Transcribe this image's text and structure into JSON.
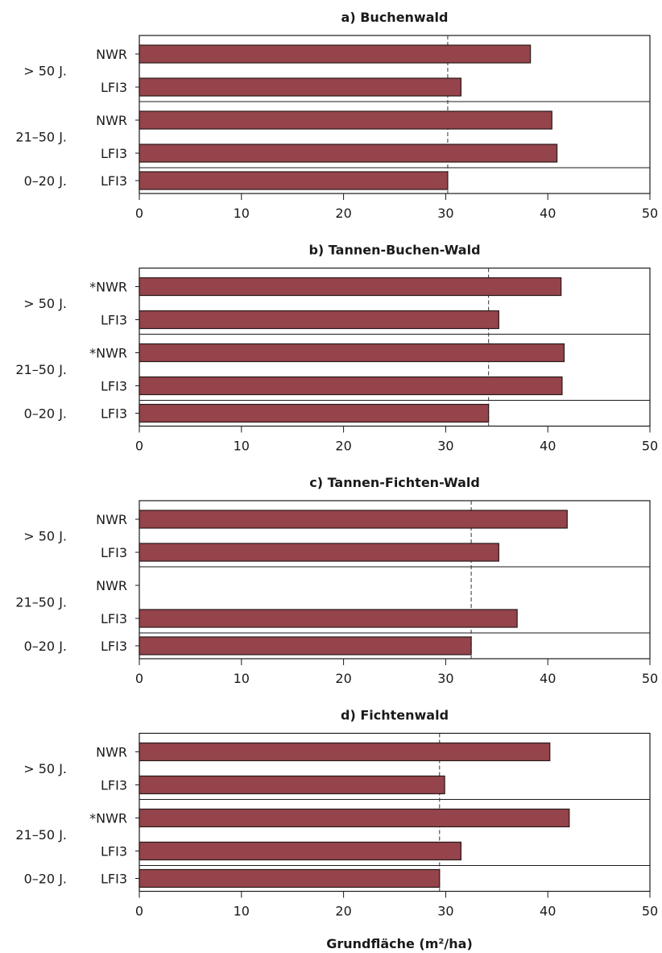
{
  "figure": {
    "xlabel": "Grundfläche (m²/ha)",
    "bar_color": "#94444a",
    "bar_edge_color": "#2a1a1a"
  },
  "chart_data": [
    {
      "type": "bar",
      "orientation": "horizontal",
      "title": "a) Buchenwald",
      "xlim": [
        0,
        50
      ],
      "xticks": [
        "0",
        "10",
        "20",
        "30",
        "40",
        "50"
      ],
      "reference_line": 30.2,
      "groups": [
        {
          "label": "> 50 J.",
          "rows": [
            {
              "label": "NWR",
              "value": 38.3
            },
            {
              "label": "LFI3",
              "value": 31.5
            }
          ]
        },
        {
          "label": "21–50 J.",
          "rows": [
            {
              "label": "NWR",
              "value": 40.4
            },
            {
              "label": "LFI3",
              "value": 40.9
            }
          ]
        },
        {
          "label": "0–20 J.",
          "rows": [
            {
              "label": "LFI3",
              "value": 30.2
            }
          ]
        }
      ]
    },
    {
      "type": "bar",
      "orientation": "horizontal",
      "title": "b) Tannen-Buchen-Wald",
      "xlim": [
        0,
        50
      ],
      "xticks": [
        "0",
        "10",
        "20",
        "30",
        "40",
        "50"
      ],
      "reference_line": 34.2,
      "groups": [
        {
          "label": "> 50 J.",
          "rows": [
            {
              "label": "*NWR",
              "value": 41.3
            },
            {
              "label": "LFI3",
              "value": 35.2
            }
          ]
        },
        {
          "label": "21–50 J.",
          "rows": [
            {
              "label": "*NWR",
              "value": 41.6
            },
            {
              "label": "LFI3",
              "value": 41.4
            }
          ]
        },
        {
          "label": "0–20 J.",
          "rows": [
            {
              "label": "LFI3",
              "value": 34.2
            }
          ]
        }
      ]
    },
    {
      "type": "bar",
      "orientation": "horizontal",
      "title": "c) Tannen-Fichten-Wald",
      "xlim": [
        0,
        50
      ],
      "xticks": [
        "0",
        "10",
        "20",
        "30",
        "40",
        "50"
      ],
      "reference_line": 32.5,
      "groups": [
        {
          "label": "> 50 J.",
          "rows": [
            {
              "label": "NWR",
              "value": 41.9
            },
            {
              "label": "LFI3",
              "value": 35.2
            }
          ]
        },
        {
          "label": "21–50 J.",
          "rows": [
            {
              "label": "NWR",
              "value": null
            },
            {
              "label": "LFI3",
              "value": 37.0
            }
          ]
        },
        {
          "label": "0–20 J.",
          "rows": [
            {
              "label": "LFI3",
              "value": 32.5
            }
          ]
        }
      ]
    },
    {
      "type": "bar",
      "orientation": "horizontal",
      "title": "d) Fichtenwald",
      "xlim": [
        0,
        50
      ],
      "xticks": [
        "0",
        "10",
        "20",
        "30",
        "40",
        "50"
      ],
      "reference_line": 29.4,
      "groups": [
        {
          "label": "> 50 J.",
          "rows": [
            {
              "label": "NWR",
              "value": 40.2
            },
            {
              "label": "LFI3",
              "value": 29.9
            }
          ]
        },
        {
          "label": "21–50 J.",
          "rows": [
            {
              "label": "*NWR",
              "value": 42.1
            },
            {
              "label": "LFI3",
              "value": 31.5
            }
          ]
        },
        {
          "label": "0–20 J.",
          "rows": [
            {
              "label": "LFI3",
              "value": 29.4
            }
          ]
        }
      ]
    }
  ]
}
